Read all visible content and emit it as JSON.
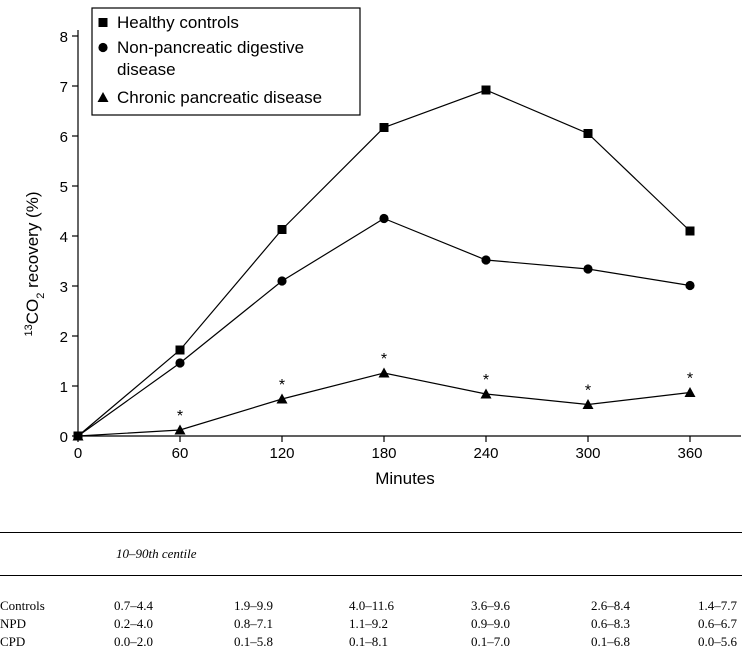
{
  "chart_data": {
    "type": "line",
    "xlabel": "Minutes",
    "ylabel_pre": "13",
    "ylabel_main": "CO",
    "ylabel_sub": "2",
    "ylabel_post": " recovery (%)",
    "x": [
      0,
      60,
      120,
      180,
      240,
      300,
      360
    ],
    "x_ticks": [
      "0",
      "60",
      "120",
      "180",
      "240",
      "300",
      "360"
    ],
    "y_ticks": [
      "0",
      "1",
      "2",
      "3",
      "4",
      "5",
      "6",
      "7",
      "8"
    ],
    "xlim": [
      0,
      360
    ],
    "ylim": [
      0,
      8
    ],
    "legend_position": "top-left",
    "series": [
      {
        "name": "Healthy controls",
        "marker": "square",
        "values": [
          0.0,
          1.72,
          4.13,
          6.17,
          6.92,
          6.05,
          4.1
        ]
      },
      {
        "name": "Non-pancreatic digestive disease",
        "marker": "circle",
        "values": [
          0.0,
          1.46,
          3.1,
          4.35,
          3.52,
          3.34,
          3.01
        ]
      },
      {
        "name": "Chronic pancreatic disease",
        "marker": "triangle",
        "values": [
          0.0,
          0.12,
          0.74,
          1.26,
          0.84,
          0.63,
          0.87
        ]
      }
    ],
    "annotations": [
      {
        "text": "*",
        "x": 60,
        "y": 0.12
      },
      {
        "text": "*",
        "x": 120,
        "y": 0.74
      },
      {
        "text": "*",
        "x": 180,
        "y": 1.26
      },
      {
        "text": "*",
        "x": 240,
        "y": 0.84
      },
      {
        "text": "*",
        "x": 300,
        "y": 0.63
      },
      {
        "text": "*",
        "x": 360,
        "y": 0.87
      }
    ]
  },
  "table": {
    "header": "10–90th centile",
    "rows": [
      {
        "label": "Controls",
        "values": [
          "0.7–4.4",
          "1.9–9.9",
          "4.0–11.6",
          "3.6–9.6",
          "2.6–8.4",
          "1.4–7.7"
        ]
      },
      {
        "label": "NPD",
        "values": [
          "0.2–4.0",
          "0.8–7.1",
          "1.1–9.2",
          "0.9–9.0",
          "0.6–8.3",
          "0.6–6.7"
        ]
      },
      {
        "label": "CPD",
        "values": [
          "0.0–2.0",
          "0.1–5.8",
          "0.1–8.1",
          "0.1–7.0",
          "0.1–6.8",
          "0.0–5.6"
        ]
      }
    ]
  }
}
